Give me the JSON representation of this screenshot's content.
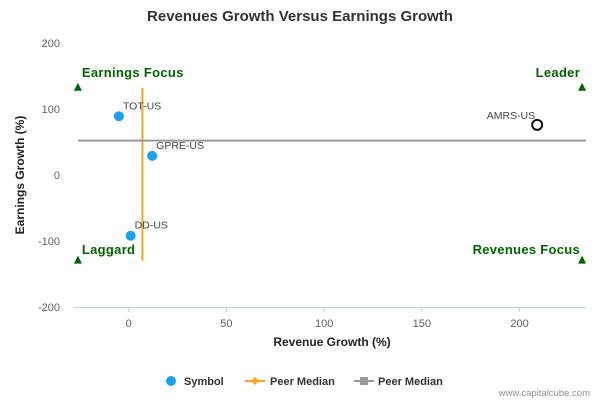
{
  "chart_data": {
    "type": "scatter",
    "title": "Revenues Growth Versus Earnings Growth",
    "xlabel": "Revenue Growth (%)",
    "ylabel": "Earnings Growth (%)",
    "xlim": [
      -28,
      234
    ],
    "ylim": [
      -200,
      200
    ],
    "x_ticks": [
      0,
      50,
      100,
      150,
      200
    ],
    "y_ticks": [
      -200,
      -100,
      0,
      100,
      200
    ],
    "grid": false,
    "legend_position": "bottom",
    "series": [
      {
        "name": "Symbol",
        "color": "#1aa3e8",
        "points": [
          {
            "label": "TOT-US",
            "x": -5,
            "y": 89
          },
          {
            "label": "GPRE-US",
            "x": 12,
            "y": 29
          },
          {
            "label": "DD-US",
            "x": 1,
            "y": -92
          }
        ]
      },
      {
        "name": "Peer Median",
        "color": "#f5a623",
        "orientation": "vertical",
        "x": 7,
        "y_range": [
          -130,
          132
        ]
      },
      {
        "name": "Peer Median",
        "color": "#999999",
        "orientation": "horizontal",
        "y": 52,
        "x_range": [
          -28,
          234
        ]
      }
    ],
    "highlight": {
      "label": "AMRS-US",
      "x": 209,
      "y": 76,
      "marker": "open-circle"
    },
    "quadrants": [
      {
        "id": "top-left",
        "label": "Earnings Focus",
        "marker_x": -26,
        "marker_y": 133
      },
      {
        "id": "top-right",
        "label": "Leader",
        "marker_x": 232,
        "marker_y": 133
      },
      {
        "id": "bottom-left",
        "label": "Laggard",
        "marker_x": -26,
        "marker_y": -129
      },
      {
        "id": "bottom-right",
        "label": "Revenues Focus",
        "marker_x": 232,
        "marker_y": -129
      }
    ],
    "quadrant_color": "#006400",
    "credit": "www.capitalcube.com"
  }
}
